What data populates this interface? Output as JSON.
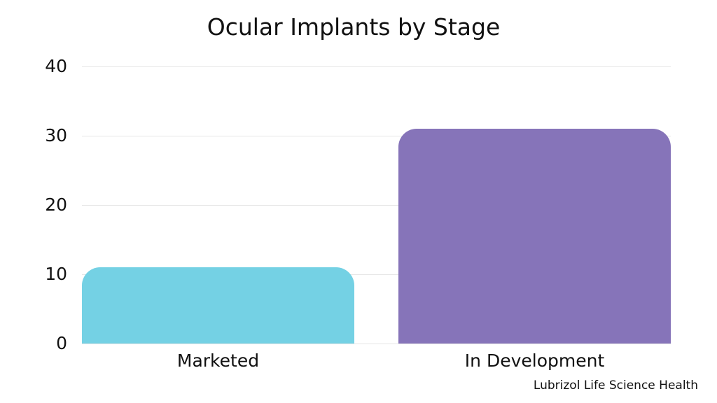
{
  "title": "Ocular Implants by Stage",
  "credit": "Lubrizol Life Science Health",
  "colors": {
    "background": "#ffffff",
    "text": "#111111",
    "gridline": "#e6e6e6",
    "marketed_bar": "#74d1e4",
    "in_development_bar": "#8674b9"
  },
  "chart_data": {
    "type": "bar",
    "title": "Ocular Implants by Stage",
    "categories": [
      "Marketed",
      "In Development"
    ],
    "values": [
      11,
      31
    ],
    "bar_colors": [
      "#74d1e4",
      "#8674b9"
    ],
    "xlabel": "",
    "ylabel": "",
    "ylim": [
      0,
      40
    ],
    "yticks": [
      0,
      10,
      20,
      30,
      40
    ],
    "grid": "horizontal",
    "legend_position": "none",
    "annotation": "Lubrizol Life Science Health"
  }
}
